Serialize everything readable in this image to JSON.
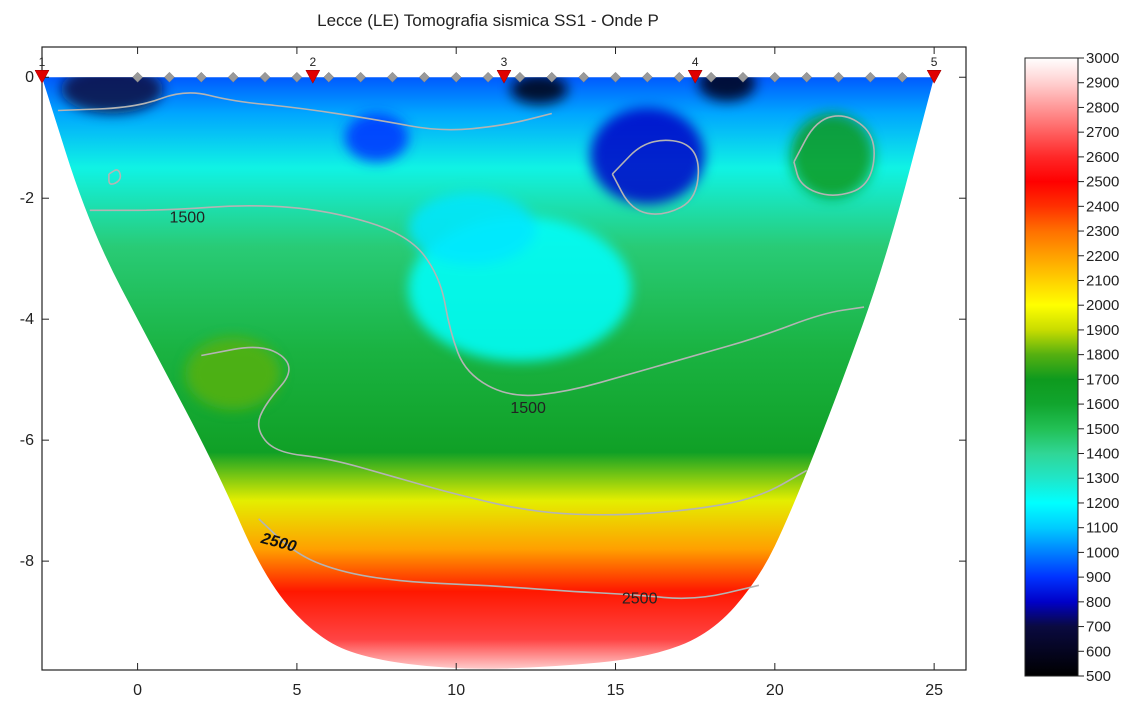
{
  "chart_data": {
    "type": "heatmap",
    "title": "Lecce (LE) Tomografia sismica SS1 - Onde P",
    "xlabel": "",
    "ylabel": "",
    "xlim": [
      -3,
      26
    ],
    "ylim": [
      -9.8,
      0.5
    ],
    "x_ticks": [
      0,
      5,
      10,
      15,
      20,
      25
    ],
    "y_ticks": [
      0,
      -2,
      -4,
      -6,
      -8
    ],
    "colorbar": {
      "min": 500,
      "max": 3000,
      "ticks": [
        3000,
        2900,
        2800,
        2700,
        2600,
        2500,
        2400,
        2300,
        2200,
        2100,
        2000,
        1900,
        1800,
        1700,
        1600,
        1500,
        1400,
        1300,
        1200,
        1100,
        1000,
        900,
        800,
        700,
        600,
        500
      ],
      "stops": [
        {
          "v": 500,
          "color": "#000000"
        },
        {
          "v": 700,
          "color": "#0a0a40"
        },
        {
          "v": 800,
          "color": "#0000c8"
        },
        {
          "v": 900,
          "color": "#0033ff"
        },
        {
          "v": 1000,
          "color": "#0080ff"
        },
        {
          "v": 1100,
          "color": "#00ccff"
        },
        {
          "v": 1200,
          "color": "#00ffff"
        },
        {
          "v": 1300,
          "color": "#20e6c8"
        },
        {
          "v": 1400,
          "color": "#30d696"
        },
        {
          "v": 1500,
          "color": "#22c055"
        },
        {
          "v": 1600,
          "color": "#11a52e"
        },
        {
          "v": 1700,
          "color": "#0e9a1e"
        },
        {
          "v": 1800,
          "color": "#55b010"
        },
        {
          "v": 1900,
          "color": "#c8dc00"
        },
        {
          "v": 2000,
          "color": "#ffff00"
        },
        {
          "v": 2100,
          "color": "#ffd000"
        },
        {
          "v": 2200,
          "color": "#ffa000"
        },
        {
          "v": 2300,
          "color": "#ff7000"
        },
        {
          "v": 2400,
          "color": "#ff3000"
        },
        {
          "v": 2500,
          "color": "#ff0000"
        },
        {
          "v": 2600,
          "color": "#ff2828"
        },
        {
          "v": 2700,
          "color": "#ff6060"
        },
        {
          "v": 2800,
          "color": "#ff9898"
        },
        {
          "v": 2900,
          "color": "#ffd0d0"
        },
        {
          "v": 3000,
          "color": "#ffffff"
        }
      ]
    },
    "shots": [
      {
        "label": "1",
        "x": -3.0
      },
      {
        "label": "2",
        "x": 5.5
      },
      {
        "label": "3",
        "x": 11.5
      },
      {
        "label": "4",
        "x": 17.5
      },
      {
        "label": "5",
        "x": 25.0
      }
    ],
    "geophones_x": [
      0,
      1,
      2,
      3,
      4,
      5,
      6,
      7,
      8,
      9,
      10,
      11,
      12,
      13,
      14,
      15,
      16,
      17,
      18,
      19,
      20,
      21,
      22,
      23,
      24
    ],
    "section_outline": [
      [
        -3,
        0
      ],
      [
        -1.5,
        -2.5
      ],
      [
        0.5,
        -4.5
      ],
      [
        2.5,
        -6.5
      ],
      [
        4,
        -8.3
      ],
      [
        5.5,
        -9.2
      ],
      [
        7,
        -9.6
      ],
      [
        10,
        -9.8
      ],
      [
        13,
        -9.75
      ],
      [
        16,
        -9.6
      ],
      [
        18,
        -9.2
      ],
      [
        19.5,
        -8.3
      ],
      [
        20.5,
        -7.2
      ],
      [
        22,
        -5.2
      ],
      [
        23.5,
        -3.0
      ],
      [
        25,
        0
      ]
    ],
    "velocity_layers": [
      {
        "depth": 0.0,
        "v": 950
      },
      {
        "depth": -0.6,
        "v": 1050
      },
      {
        "depth": -1.5,
        "v": 1250
      },
      {
        "depth": -2.8,
        "v": 1450
      },
      {
        "depth": -4.5,
        "v": 1550
      },
      {
        "depth": -6.2,
        "v": 1650
      },
      {
        "depth": -7.0,
        "v": 1950
      },
      {
        "depth": -7.8,
        "v": 2200
      },
      {
        "depth": -8.5,
        "v": 2450
      },
      {
        "depth": -9.3,
        "v": 2650
      },
      {
        "depth": -9.8,
        "v": 2900
      }
    ],
    "anomalies": [
      {
        "x": 12.6,
        "y": -0.2,
        "rx": 0.9,
        "ry": 0.25,
        "v": 550
      },
      {
        "x": 18.5,
        "y": -0.1,
        "rx": 0.9,
        "ry": 0.3,
        "v": 580
      },
      {
        "x": -0.8,
        "y": -0.2,
        "rx": 1.6,
        "ry": 0.4,
        "v": 700
      },
      {
        "x": 16.0,
        "y": -1.3,
        "rx": 1.8,
        "ry": 0.8,
        "v": 800
      },
      {
        "x": 21.8,
        "y": -1.3,
        "rx": 1.3,
        "ry": 0.7,
        "v": 1700
      },
      {
        "x": 3.0,
        "y": -4.9,
        "rx": 1.5,
        "ry": 0.6,
        "v": 1800
      },
      {
        "x": 12.0,
        "y": -3.5,
        "rx": 3.5,
        "ry": 1.2,
        "v": 1200
      },
      {
        "x": 7.5,
        "y": -1.0,
        "rx": 1.0,
        "ry": 0.4,
        "v": 900
      },
      {
        "x": 10.5,
        "y": -2.5,
        "rx": 2.0,
        "ry": 0.6,
        "v": 1150
      }
    ],
    "contours": [
      {
        "level": 1500,
        "label": "1500",
        "label_at": [
          1.0,
          -2.3
        ],
        "points": [
          [
            -1.5,
            -2.2
          ],
          [
            1.0,
            -2.2
          ],
          [
            3.5,
            -2.1
          ],
          [
            6.0,
            -2.2
          ],
          [
            8.5,
            -2.6
          ],
          [
            9.5,
            -3.3
          ],
          [
            9.8,
            -4.2
          ],
          [
            10.3,
            -4.9
          ],
          [
            11.7,
            -5.3
          ],
          [
            13.5,
            -5.2
          ],
          [
            15.5,
            -4.9
          ],
          [
            17.5,
            -4.6
          ],
          [
            19.5,
            -4.3
          ],
          [
            21.5,
            -3.9
          ],
          [
            22.8,
            -3.8
          ]
        ]
      },
      {
        "level": 1500,
        "label": "1500",
        "label_at": [
          11.7,
          -5.45
        ],
        "points": []
      },
      {
        "level": 2500,
        "label": "2500",
        "label_at": [
          3.9,
          -7.6
        ],
        "points": [
          [
            3.8,
            -7.3
          ],
          [
            5.0,
            -7.9
          ],
          [
            6.5,
            -8.2
          ],
          [
            8.5,
            -8.35
          ],
          [
            11.0,
            -8.4
          ],
          [
            13.5,
            -8.5
          ],
          [
            15.5,
            -8.55
          ],
          [
            17.5,
            -8.65
          ],
          [
            19.5,
            -8.4
          ]
        ]
      },
      {
        "level": 2500,
        "label": "2500",
        "label_at": [
          15.2,
          -8.6
        ],
        "points": []
      },
      {
        "level": 1700,
        "label": "",
        "points": [
          [
            2.0,
            -4.6
          ],
          [
            4.0,
            -4.4
          ],
          [
            5.0,
            -4.8
          ],
          [
            4.0,
            -5.4
          ],
          [
            3.7,
            -5.8
          ],
          [
            4.3,
            -6.2
          ],
          [
            6.0,
            -6.3
          ],
          [
            8.0,
            -6.6
          ],
          [
            10.0,
            -6.9
          ],
          [
            12.5,
            -7.2
          ],
          [
            15.0,
            -7.25
          ],
          [
            17.5,
            -7.15
          ],
          [
            19.5,
            -6.95
          ],
          [
            21.0,
            -6.5
          ]
        ]
      },
      {
        "level": 1000,
        "label": "",
        "points": [
          [
            -2.5,
            -0.55
          ],
          [
            0.0,
            -0.5
          ],
          [
            1.5,
            -0.2
          ],
          [
            3.0,
            -0.4
          ],
          [
            5.0,
            -0.5
          ],
          [
            7.5,
            -0.7
          ],
          [
            9.5,
            -0.9
          ],
          [
            11.5,
            -0.8
          ],
          [
            13.0,
            -0.6
          ]
        ]
      },
      {
        "level": 1000,
        "label": "",
        "points": [
          [
            14.9,
            -1.6
          ],
          [
            16.0,
            -1.0
          ],
          [
            17.6,
            -1.1
          ],
          [
            17.6,
            -2.0
          ],
          [
            16.5,
            -2.3
          ],
          [
            15.5,
            -2.2
          ],
          [
            14.9,
            -1.6
          ]
        ]
      },
      {
        "level": 1600,
        "label": "",
        "points": [
          [
            20.6,
            -1.4
          ],
          [
            21.3,
            -0.7
          ],
          [
            22.3,
            -0.6
          ],
          [
            23.2,
            -1.0
          ],
          [
            23.0,
            -1.8
          ],
          [
            21.8,
            -2.0
          ],
          [
            20.8,
            -1.8
          ],
          [
            20.6,
            -1.4
          ]
        ]
      },
      {
        "level": 1300,
        "label": "",
        "points": [
          [
            -0.9,
            -1.6
          ],
          [
            -0.6,
            -1.5
          ],
          [
            -0.5,
            -1.7
          ],
          [
            -0.9,
            -1.8
          ],
          [
            -0.9,
            -1.6
          ]
        ]
      }
    ]
  }
}
